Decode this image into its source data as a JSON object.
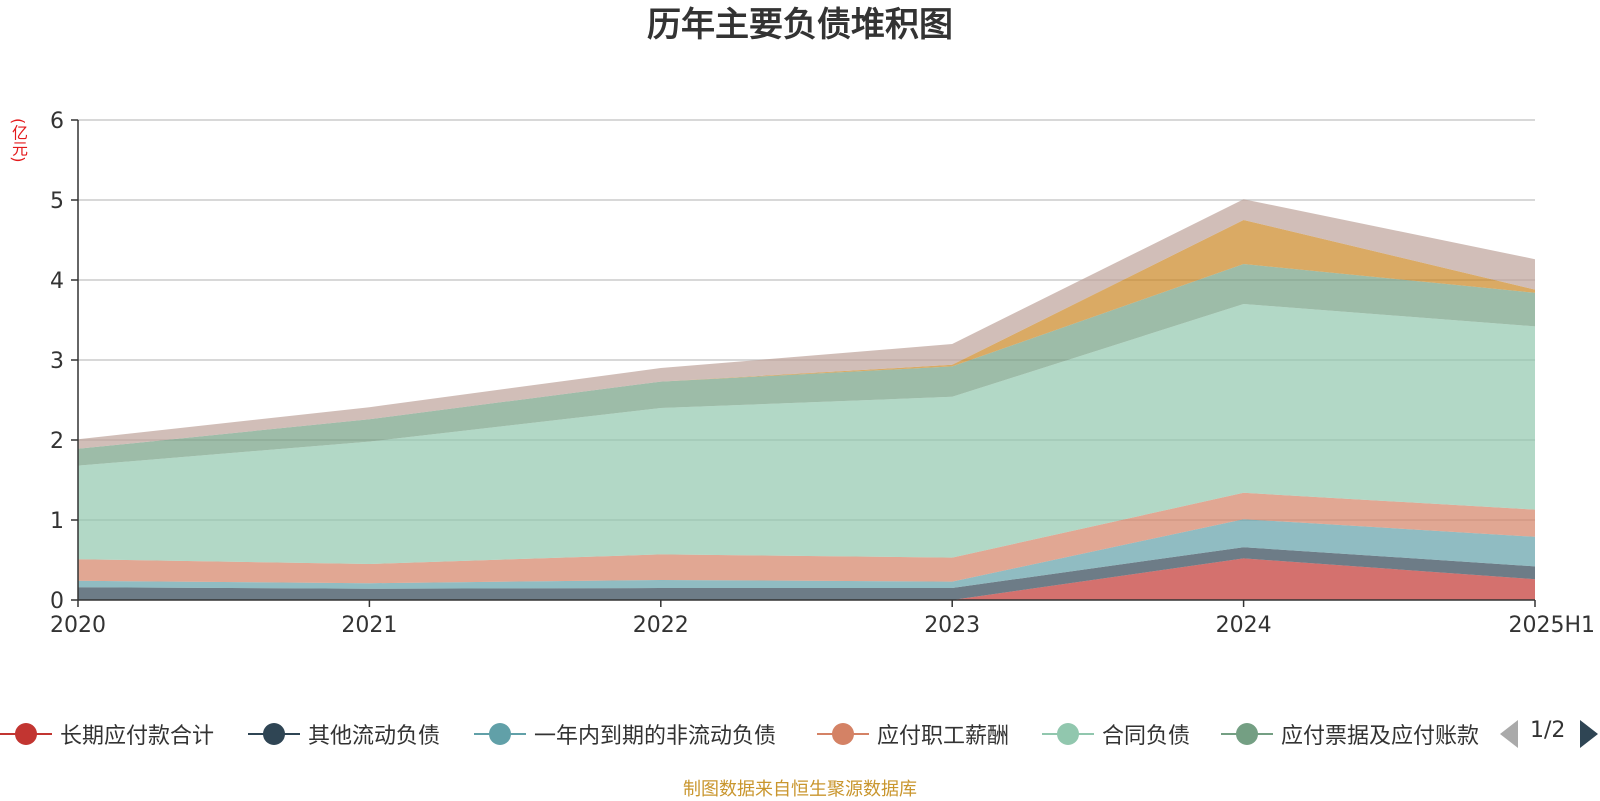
{
  "title": "历年主要负债堆积图",
  "unit_label": "(亿元)",
  "source": "制图数据来自恒生聚源数据库",
  "pager": {
    "text": "1/2"
  },
  "legend": [
    {
      "name": "长期应付款合计",
      "color": "#c23531"
    },
    {
      "name": "其他流动负债",
      "color": "#2f4554"
    },
    {
      "name": "一年内到期的非流动负债",
      "color": "#61a0a8"
    },
    {
      "name": "应付职工薪酬",
      "color": "#d48265"
    },
    {
      "name": "合同负债",
      "color": "#91c7ae"
    },
    {
      "name": "应付票据及应付账款",
      "color": "#749f83"
    }
  ],
  "chart_data": {
    "type": "area",
    "stacked": true,
    "categories": [
      "2020",
      "2021",
      "2022",
      "2023",
      "2024",
      "2025H1"
    ],
    "ylim": [
      0,
      6
    ],
    "yticks": [
      0,
      1,
      2,
      3,
      4,
      5,
      6
    ],
    "ylabel": "(亿元)",
    "grid": true,
    "legend_position": "bottom",
    "series": [
      {
        "name": "长期应付款合计",
        "color": "#c23531",
        "values": [
          0,
          0,
          0,
          0,
          0.52,
          0.26
        ]
      },
      {
        "name": "其他流动负债",
        "color": "#2f4554",
        "values": [
          0.16,
          0.14,
          0.15,
          0.15,
          0.14,
          0.16
        ]
      },
      {
        "name": "一年内到期的非流动负债",
        "color": "#61a0a8",
        "values": [
          0.08,
          0.07,
          0.1,
          0.08,
          0.35,
          0.37
        ]
      },
      {
        "name": "应付职工薪酬",
        "color": "#d48265",
        "values": [
          0.27,
          0.24,
          0.32,
          0.3,
          0.33,
          0.34
        ]
      },
      {
        "name": "合同负债",
        "color": "#91c7ae",
        "values": [
          1.17,
          1.53,
          1.83,
          2.01,
          2.36,
          2.29
        ]
      },
      {
        "name": "应付票据及应付账款",
        "color": "#749f83",
        "values": [
          0.21,
          0.28,
          0.33,
          0.38,
          0.5,
          0.42
        ]
      },
      {
        "color": "#ca8622",
        "values": [
          0,
          0,
          0,
          0.02,
          0.55,
          0.04
        ]
      },
      {
        "color": "#bda29a",
        "values": [
          0.12,
          0.15,
          0.17,
          0.26,
          0.26,
          0.38
        ]
      }
    ]
  }
}
